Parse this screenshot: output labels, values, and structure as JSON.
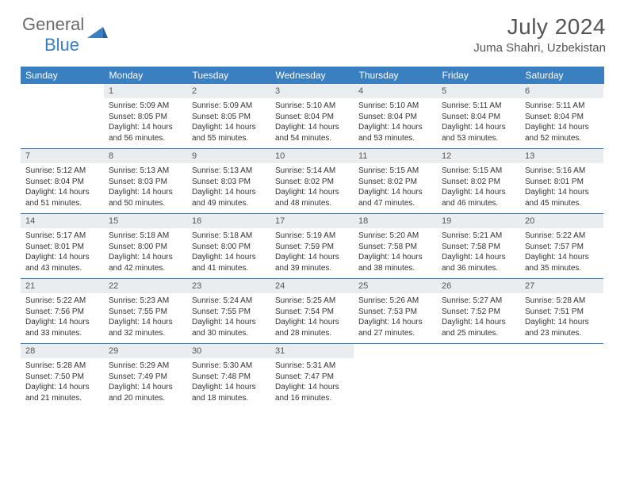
{
  "brand": {
    "word1": "General",
    "word2": "Blue"
  },
  "colors": {
    "accent": "#3a7fc0",
    "grayText": "#6b6b6b",
    "headerBg": "#3a7fc0",
    "dayNumBg": "#e9edf0",
    "bodyText": "#333333",
    "titleText": "#555555"
  },
  "title": "July 2024",
  "location": "Juma Shahri, Uzbekistan",
  "dow": [
    "Sunday",
    "Monday",
    "Tuesday",
    "Wednesday",
    "Thursday",
    "Friday",
    "Saturday"
  ],
  "weeks": [
    [
      {
        "n": "",
        "lines": [
          "",
          "",
          "",
          ""
        ]
      },
      {
        "n": "1",
        "lines": [
          "Sunrise: 5:09 AM",
          "Sunset: 8:05 PM",
          "Daylight: 14 hours",
          "and 56 minutes."
        ]
      },
      {
        "n": "2",
        "lines": [
          "Sunrise: 5:09 AM",
          "Sunset: 8:05 PM",
          "Daylight: 14 hours",
          "and 55 minutes."
        ]
      },
      {
        "n": "3",
        "lines": [
          "Sunrise: 5:10 AM",
          "Sunset: 8:04 PM",
          "Daylight: 14 hours",
          "and 54 minutes."
        ]
      },
      {
        "n": "4",
        "lines": [
          "Sunrise: 5:10 AM",
          "Sunset: 8:04 PM",
          "Daylight: 14 hours",
          "and 53 minutes."
        ]
      },
      {
        "n": "5",
        "lines": [
          "Sunrise: 5:11 AM",
          "Sunset: 8:04 PM",
          "Daylight: 14 hours",
          "and 53 minutes."
        ]
      },
      {
        "n": "6",
        "lines": [
          "Sunrise: 5:11 AM",
          "Sunset: 8:04 PM",
          "Daylight: 14 hours",
          "and 52 minutes."
        ]
      }
    ],
    [
      {
        "n": "7",
        "lines": [
          "Sunrise: 5:12 AM",
          "Sunset: 8:04 PM",
          "Daylight: 14 hours",
          "and 51 minutes."
        ]
      },
      {
        "n": "8",
        "lines": [
          "Sunrise: 5:13 AM",
          "Sunset: 8:03 PM",
          "Daylight: 14 hours",
          "and 50 minutes."
        ]
      },
      {
        "n": "9",
        "lines": [
          "Sunrise: 5:13 AM",
          "Sunset: 8:03 PM",
          "Daylight: 14 hours",
          "and 49 minutes."
        ]
      },
      {
        "n": "10",
        "lines": [
          "Sunrise: 5:14 AM",
          "Sunset: 8:02 PM",
          "Daylight: 14 hours",
          "and 48 minutes."
        ]
      },
      {
        "n": "11",
        "lines": [
          "Sunrise: 5:15 AM",
          "Sunset: 8:02 PM",
          "Daylight: 14 hours",
          "and 47 minutes."
        ]
      },
      {
        "n": "12",
        "lines": [
          "Sunrise: 5:15 AM",
          "Sunset: 8:02 PM",
          "Daylight: 14 hours",
          "and 46 minutes."
        ]
      },
      {
        "n": "13",
        "lines": [
          "Sunrise: 5:16 AM",
          "Sunset: 8:01 PM",
          "Daylight: 14 hours",
          "and 45 minutes."
        ]
      }
    ],
    [
      {
        "n": "14",
        "lines": [
          "Sunrise: 5:17 AM",
          "Sunset: 8:01 PM",
          "Daylight: 14 hours",
          "and 43 minutes."
        ]
      },
      {
        "n": "15",
        "lines": [
          "Sunrise: 5:18 AM",
          "Sunset: 8:00 PM",
          "Daylight: 14 hours",
          "and 42 minutes."
        ]
      },
      {
        "n": "16",
        "lines": [
          "Sunrise: 5:18 AM",
          "Sunset: 8:00 PM",
          "Daylight: 14 hours",
          "and 41 minutes."
        ]
      },
      {
        "n": "17",
        "lines": [
          "Sunrise: 5:19 AM",
          "Sunset: 7:59 PM",
          "Daylight: 14 hours",
          "and 39 minutes."
        ]
      },
      {
        "n": "18",
        "lines": [
          "Sunrise: 5:20 AM",
          "Sunset: 7:58 PM",
          "Daylight: 14 hours",
          "and 38 minutes."
        ]
      },
      {
        "n": "19",
        "lines": [
          "Sunrise: 5:21 AM",
          "Sunset: 7:58 PM",
          "Daylight: 14 hours",
          "and 36 minutes."
        ]
      },
      {
        "n": "20",
        "lines": [
          "Sunrise: 5:22 AM",
          "Sunset: 7:57 PM",
          "Daylight: 14 hours",
          "and 35 minutes."
        ]
      }
    ],
    [
      {
        "n": "21",
        "lines": [
          "Sunrise: 5:22 AM",
          "Sunset: 7:56 PM",
          "Daylight: 14 hours",
          "and 33 minutes."
        ]
      },
      {
        "n": "22",
        "lines": [
          "Sunrise: 5:23 AM",
          "Sunset: 7:55 PM",
          "Daylight: 14 hours",
          "and 32 minutes."
        ]
      },
      {
        "n": "23",
        "lines": [
          "Sunrise: 5:24 AM",
          "Sunset: 7:55 PM",
          "Daylight: 14 hours",
          "and 30 minutes."
        ]
      },
      {
        "n": "24",
        "lines": [
          "Sunrise: 5:25 AM",
          "Sunset: 7:54 PM",
          "Daylight: 14 hours",
          "and 28 minutes."
        ]
      },
      {
        "n": "25",
        "lines": [
          "Sunrise: 5:26 AM",
          "Sunset: 7:53 PM",
          "Daylight: 14 hours",
          "and 27 minutes."
        ]
      },
      {
        "n": "26",
        "lines": [
          "Sunrise: 5:27 AM",
          "Sunset: 7:52 PM",
          "Daylight: 14 hours",
          "and 25 minutes."
        ]
      },
      {
        "n": "27",
        "lines": [
          "Sunrise: 5:28 AM",
          "Sunset: 7:51 PM",
          "Daylight: 14 hours",
          "and 23 minutes."
        ]
      }
    ],
    [
      {
        "n": "28",
        "lines": [
          "Sunrise: 5:28 AM",
          "Sunset: 7:50 PM",
          "Daylight: 14 hours",
          "and 21 minutes."
        ]
      },
      {
        "n": "29",
        "lines": [
          "Sunrise: 5:29 AM",
          "Sunset: 7:49 PM",
          "Daylight: 14 hours",
          "and 20 minutes."
        ]
      },
      {
        "n": "30",
        "lines": [
          "Sunrise: 5:30 AM",
          "Sunset: 7:48 PM",
          "Daylight: 14 hours",
          "and 18 minutes."
        ]
      },
      {
        "n": "31",
        "lines": [
          "Sunrise: 5:31 AM",
          "Sunset: 7:47 PM",
          "Daylight: 14 hours",
          "and 16 minutes."
        ]
      },
      {
        "n": "",
        "lines": [
          "",
          "",
          "",
          ""
        ]
      },
      {
        "n": "",
        "lines": [
          "",
          "",
          "",
          ""
        ]
      },
      {
        "n": "",
        "lines": [
          "",
          "",
          "",
          ""
        ]
      }
    ]
  ]
}
